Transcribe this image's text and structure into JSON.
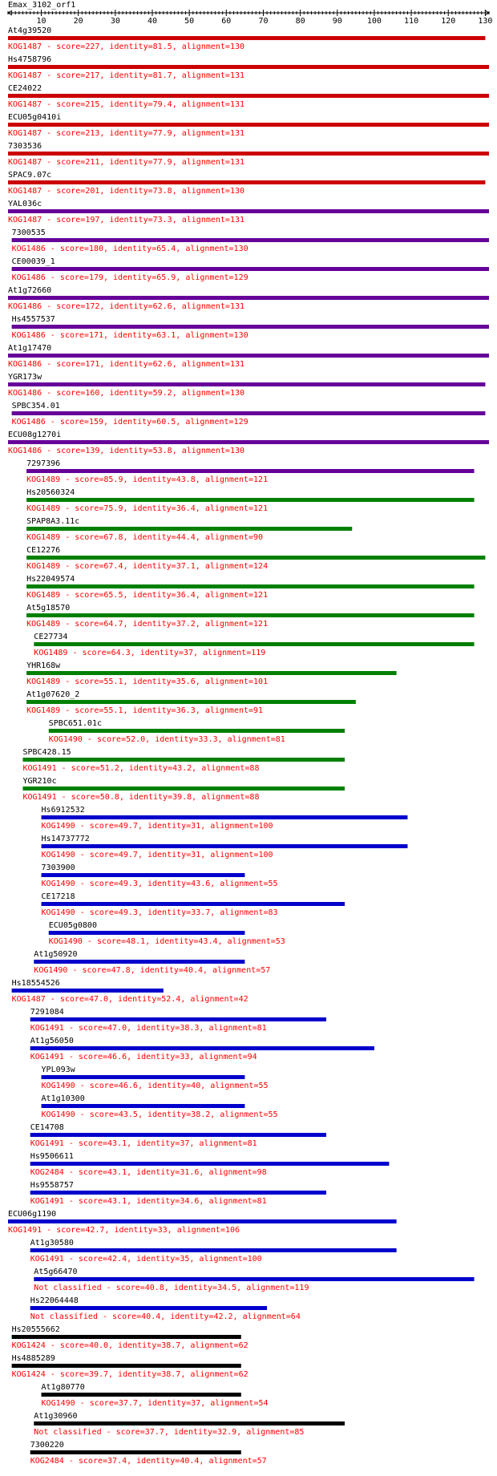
{
  "chart_data": {
    "type": "alignment-track",
    "query_name": "Emax_3102_orf1",
    "axis": {
      "min": 1,
      "max": 131,
      "tick_labels": [
        10,
        20,
        30,
        40,
        50,
        60,
        70,
        80,
        90,
        100,
        110,
        120,
        130
      ]
    },
    "colors": {
      "KOG1487": "#ff0000",
      "KOG1487_alt": "#0000cc",
      "KOG1486": "#660099",
      "KOG1489": "#008000",
      "KOG1490_green": "#008000",
      "KOG1491_green": "#008000",
      "blue": "#0000cc",
      "black": "#000000",
      "text": "#ff0000"
    },
    "hits": [
      {
        "name": "At4g39520",
        "start": 1,
        "end": 130,
        "color": "#cc0000",
        "desc": "KOG1487 - score=227, identity=81.5, alignment=130"
      },
      {
        "name": "Hs4758796",
        "start": 1,
        "end": 131,
        "color": "#cc0000",
        "desc": "KOG1487 - score=217, identity=81.7, alignment=131"
      },
      {
        "name": "CE24022",
        "start": 1,
        "end": 131,
        "color": "#cc0000",
        "desc": "KOG1487 - score=215, identity=79.4, alignment=131"
      },
      {
        "name": "ECU05g0410i",
        "start": 1,
        "end": 131,
        "color": "#cc0000",
        "desc": "KOG1487 - score=213, identity=77.9, alignment=131"
      },
      {
        "name": "7303536",
        "start": 1,
        "end": 131,
        "color": "#cc0000",
        "desc": "KOG1487 - score=211, identity=77.9, alignment=131"
      },
      {
        "name": "SPAC9.07c",
        "start": 1,
        "end": 130,
        "color": "#cc0000",
        "desc": "KOG1487 - score=201, identity=73.8, alignment=130"
      },
      {
        "name": "YAL036c",
        "start": 1,
        "end": 131,
        "color": "#660099",
        "desc": "KOG1487 - score=197, identity=73.3, alignment=131"
      },
      {
        "name": "7300535",
        "start": 2,
        "end": 131,
        "color": "#660099",
        "desc": "KOG1486 - score=180, identity=65.4, alignment=130"
      },
      {
        "name": "CE00039_1",
        "start": 2,
        "end": 131,
        "color": "#660099",
        "desc": "KOG1486 - score=179, identity=65.9, alignment=129"
      },
      {
        "name": "At1g72660",
        "start": 1,
        "end": 131,
        "color": "#660099",
        "desc": "KOG1486 - score=172, identity=62.6, alignment=131"
      },
      {
        "name": "Hs4557537",
        "start": 2,
        "end": 131,
        "color": "#660099",
        "desc": "KOG1486 - score=171, identity=63.1, alignment=130"
      },
      {
        "name": "At1g17470",
        "start": 1,
        "end": 131,
        "color": "#660099",
        "desc": "KOG1486 - score=171, identity=62.6, alignment=131"
      },
      {
        "name": "YGR173w",
        "start": 1,
        "end": 130,
        "color": "#660099",
        "desc": "KOG1486 - score=160, identity=59.2, alignment=130"
      },
      {
        "name": "SPBC354.01",
        "start": 2,
        "end": 130,
        "color": "#660099",
        "desc": "KOG1486 - score=159, identity=60.5, alignment=129"
      },
      {
        "name": "ECU08g1270i",
        "start": 1,
        "end": 131,
        "color": "#660099",
        "desc": "KOG1486 - score=139, identity=53.8, alignment=130"
      },
      {
        "name": "7297396",
        "start": 6,
        "end": 127,
        "color": "#660099",
        "desc": "KOG1489 - score=85.9, identity=43.8, alignment=121"
      },
      {
        "name": "Hs20560324",
        "start": 6,
        "end": 127,
        "color": "#008000",
        "desc": "KOG1489 - score=75.9, identity=36.4, alignment=121"
      },
      {
        "name": "SPAP8A3.11c",
        "start": 6,
        "end": 94,
        "color": "#008000",
        "desc": "KOG1489 - score=67.8, identity=44.4, alignment=90"
      },
      {
        "name": "CE12276",
        "start": 6,
        "end": 130,
        "color": "#008000",
        "desc": "KOG1489 - score=67.4, identity=37.1, alignment=124"
      },
      {
        "name": "Hs22049574",
        "start": 6,
        "end": 127,
        "color": "#008000",
        "desc": "KOG1489 - score=65.5, identity=36.4, alignment=121"
      },
      {
        "name": "At5g18570",
        "start": 6,
        "end": 127,
        "color": "#008000",
        "desc": "KOG1489 - score=64.7, identity=37.2, alignment=121"
      },
      {
        "name": "CE27734",
        "start": 8,
        "end": 127,
        "color": "#008000",
        "desc": "KOG1489 - score=64.3, identity=37, alignment=119"
      },
      {
        "name": "YHR168w",
        "start": 6,
        "end": 106,
        "color": "#008000",
        "desc": "KOG1489 - score=55.1, identity=35.6, alignment=101"
      },
      {
        "name": "At1g07620_2",
        "start": 6,
        "end": 95,
        "color": "#008000",
        "desc": "KOG1489 - score=55.1, identity=36.3, alignment=91"
      },
      {
        "name": "SPBC651.01c",
        "start": 12,
        "end": 92,
        "color": "#008000",
        "desc": "KOG1490 - score=52.0, identity=33.3, alignment=81"
      },
      {
        "name": "SPBC428.15",
        "start": 5,
        "end": 92,
        "color": "#008000",
        "desc": "KOG1491 - score=51.2, identity=43.2, alignment=88"
      },
      {
        "name": "YGR210c",
        "start": 5,
        "end": 92,
        "color": "#008000",
        "desc": "KOG1491 - score=50.8, identity=39.8, alignment=88"
      },
      {
        "name": "Hs6912532",
        "start": 10,
        "end": 109,
        "color": "#0000cc",
        "desc": "KOG1490 - score=49.7, identity=31, alignment=100"
      },
      {
        "name": "Hs14737772",
        "start": 10,
        "end": 109,
        "color": "#0000cc",
        "desc": "KOG1490 - score=49.7, identity=31, alignment=100"
      },
      {
        "name": "7303900",
        "start": 10,
        "end": 65,
        "color": "#0000cc",
        "desc": "KOG1490 - score=49.3, identity=43.6, alignment=55"
      },
      {
        "name": "CE17218",
        "start": 10,
        "end": 92,
        "color": "#0000cc",
        "desc": "KOG1490 - score=49.3, identity=33.7, alignment=83"
      },
      {
        "name": "ECU05g0800",
        "start": 12,
        "end": 65,
        "color": "#0000cc",
        "desc": "KOG1490 - score=48.1, identity=43.4, alignment=53"
      },
      {
        "name": "At1g50920",
        "start": 8,
        "end": 65,
        "color": "#0000cc",
        "desc": "KOG1490 - score=47.8, identity=40.4, alignment=57"
      },
      {
        "name": "Hs18554526",
        "start": 2,
        "end": 43,
        "color": "#0000cc",
        "desc": "KOG1487 - score=47.0, identity=52.4, alignment=42"
      },
      {
        "name": "7291084",
        "start": 7,
        "end": 87,
        "color": "#0000cc",
        "desc": "KOG1491 - score=47.0, identity=38.3, alignment=81"
      },
      {
        "name": "At1g56050",
        "start": 7,
        "end": 100,
        "color": "#0000cc",
        "desc": "KOG1491 - score=46.6, identity=33, alignment=94"
      },
      {
        "name": "YPL093w",
        "start": 10,
        "end": 65,
        "color": "#0000cc",
        "desc": "KOG1490 - score=46.6, identity=40, alignment=55"
      },
      {
        "name": "At1g10300",
        "start": 10,
        "end": 65,
        "color": "#0000cc",
        "desc": "KOG1490 - score=43.5, identity=38.2, alignment=55"
      },
      {
        "name": "CE14708",
        "start": 7,
        "end": 87,
        "color": "#0000cc",
        "desc": "KOG1491 - score=43.1, identity=37, alignment=81"
      },
      {
        "name": "Hs9506611",
        "start": 7,
        "end": 104,
        "color": "#0000cc",
        "desc": "KOG2484 - score=43.1, identity=31.6, alignment=98"
      },
      {
        "name": "Hs9558757",
        "start": 7,
        "end": 87,
        "color": "#0000cc",
        "desc": "KOG1491 - score=43.1, identity=34.6, alignment=81"
      },
      {
        "name": "ECU06g1190",
        "start": 1,
        "end": 106,
        "color": "#0000cc",
        "desc": "KOG1491 - score=42.7, identity=33, alignment=106"
      },
      {
        "name": "At1g30580",
        "start": 7,
        "end": 106,
        "color": "#0000cc",
        "desc": "KOG1491 - score=42.4, identity=35, alignment=100"
      },
      {
        "name": "At5g66470",
        "start": 8,
        "end": 127,
        "color": "#0000cc",
        "desc": "Not classified - score=40.8, identity=34.5, alignment=119"
      },
      {
        "name": "Hs22064448",
        "start": 7,
        "end": 71,
        "color": "#0000cc",
        "desc": "Not classified - score=40.4, identity=42.2, alignment=64"
      },
      {
        "name": "Hs20555662",
        "start": 2,
        "end": 64,
        "color": "#000000",
        "desc": "KOG1424 - score=40.0, identity=38.7, alignment=62"
      },
      {
        "name": "Hs4885289",
        "start": 2,
        "end": 64,
        "color": "#000000",
        "desc": "KOG1424 - score=39.7, identity=38.7, alignment=62"
      },
      {
        "name": "At1g80770",
        "start": 10,
        "end": 64,
        "color": "#000000",
        "desc": "KOG1490 - score=37.7, identity=37, alignment=54"
      },
      {
        "name": "At1g30960",
        "start": 8,
        "end": 92,
        "color": "#000000",
        "desc": "Not classified - score=37.7, identity=32.9, alignment=85"
      },
      {
        "name": "7300220",
        "start": 7,
        "end": 64,
        "color": "#000000",
        "desc": "KOG2484 - score=37.4, identity=40.4, alignment=57"
      }
    ]
  }
}
